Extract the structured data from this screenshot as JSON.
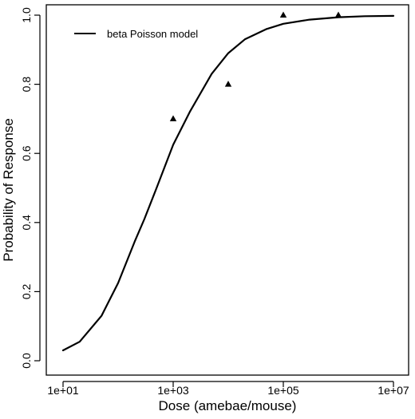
{
  "chart_data": {
    "type": "line",
    "title": "",
    "xlabel": "Dose (amebae/mouse)",
    "ylabel": "Probability of Response",
    "x_scale": "log10",
    "xlim": [
      10,
      10000000
    ],
    "ylim": [
      0.0,
      1.0
    ],
    "x_ticks": [
      10,
      1000,
      100000,
      10000000
    ],
    "x_tick_labels": [
      "1e+01",
      "1e+03",
      "1e+05",
      "1e+07"
    ],
    "y_ticks": [
      0.0,
      0.2,
      0.4,
      0.6,
      0.8,
      1.0
    ],
    "y_tick_labels": [
      "0.0",
      "0.2",
      "0.4",
      "0.6",
      "0.8",
      "1.0"
    ],
    "grid": false,
    "legend": {
      "position": "top-left",
      "entries": [
        "beta Poisson model"
      ]
    },
    "series": [
      {
        "name": "beta Poisson model",
        "kind": "line",
        "color": "#000000",
        "x": [
          10,
          20,
          50,
          100,
          200,
          300,
          500,
          1000,
          2000,
          5000,
          10000,
          20000,
          50000,
          100000,
          300000,
          1000000,
          3000000,
          10000000
        ],
        "y": [
          0.03,
          0.055,
          0.13,
          0.225,
          0.345,
          0.41,
          0.5,
          0.625,
          0.72,
          0.83,
          0.89,
          0.93,
          0.96,
          0.975,
          0.987,
          0.994,
          0.997,
          0.998
        ]
      },
      {
        "name": "",
        "kind": "scatter",
        "marker": "triangle",
        "color": "#000000",
        "x": [
          1000,
          10000,
          100000,
          1000000
        ],
        "y": [
          0.7,
          0.8,
          1.0,
          1.0
        ]
      }
    ]
  }
}
